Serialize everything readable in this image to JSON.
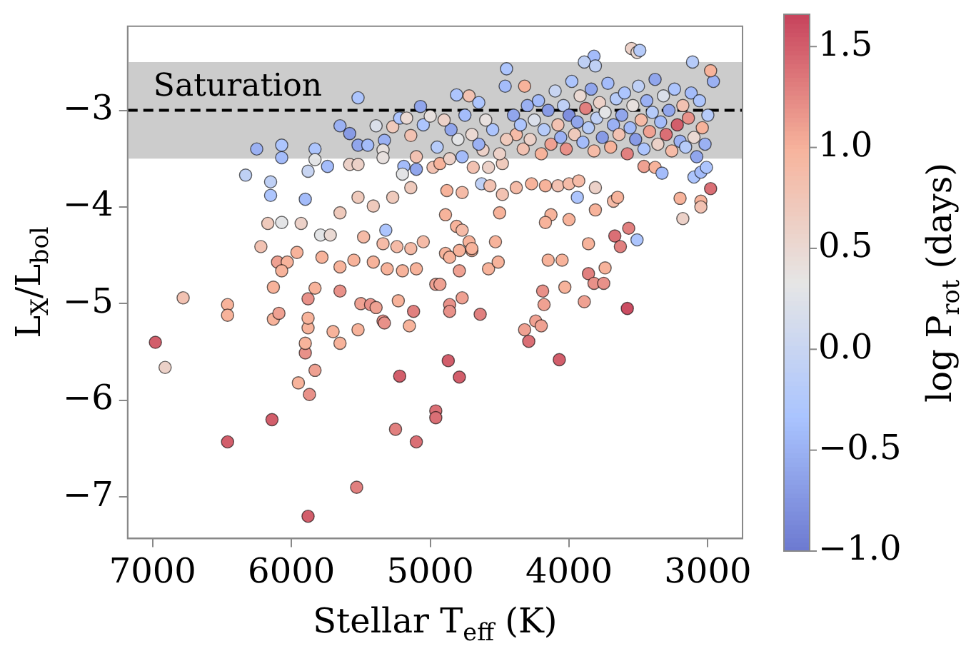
{
  "chart_data": {
    "type": "scatter",
    "xlabel": "Stellar T$_{eff}$ (K)",
    "ylabel": "L$_{X}$/L$_{bol}$",
    "clabel": "log P$_{rot}$ (days)",
    "xlim": [
      7180,
      2750
    ],
    "ylim": [
      -7.43,
      -2.13
    ],
    "xticks": [
      7000,
      6000,
      5000,
      4000,
      3000
    ],
    "yticks": [
      -7,
      -6,
      -5,
      -4,
      -3
    ],
    "clim": [
      -1.0,
      1.66
    ],
    "cticks": [
      {
        "value": -1,
        "label": "−1.0"
      },
      {
        "value": -0.5,
        "label": "−0.5"
      },
      {
        "value": 0,
        "label": "0.0"
      },
      {
        "value": 0.5,
        "label": "0.5"
      },
      {
        "value": 1,
        "label": "1.0"
      },
      {
        "value": 1.5,
        "label": "1.5"
      }
    ],
    "grid": false,
    "legend": false,
    "marker": "circle",
    "bands": [
      {
        "axis": "y",
        "from": -3.5,
        "to": -2.5,
        "label": "Saturation",
        "color": "#cccccc"
      }
    ],
    "ref_lines": [
      {
        "axis": "y",
        "value": -3,
        "color": "#000000",
        "line_style": "dashed"
      }
    ],
    "series": [
      {
        "x": [
          6980,
          6910,
          6780,
          6460,
          6460,
          6460,
          6330,
          6250,
          6070,
          6150,
          6150,
          6170,
          6220,
          6070,
          6130,
          6130,
          6090,
          6140,
          6100,
          5880,
          5870,
          5950,
          5900,
          5900,
          5830,
          5880,
          5880,
          5880,
          6070,
          5830,
          5880,
          5830,
          5740,
          5900,
          5930,
          5790,
          5720,
          5960,
          5780,
          6030,
          6070,
          5830,
          5650,
          5700,
          5650,
          5520,
          5530,
          5250,
          5220,
          5100,
          4960,
          4960,
          5500,
          5430,
          5390,
          5340,
          5330,
          5120,
          5150,
          5230,
          5650,
          5550,
          5410,
          5310,
          5200,
          5100,
          5480,
          5340,
          5240,
          5140,
          5050,
          5650,
          5520,
          5410,
          5270,
          5140,
          5320,
          5190,
          5100,
          5580,
          5520,
          5200,
          5650,
          5580,
          5520,
          5450,
          5390,
          5330,
          5270,
          5220,
          5170,
          5140,
          5050,
          5000,
          5070,
          5520,
          5340,
          5340,
          5100,
          4980,
          4930,
          4860,
          4770,
          4690,
          4580,
          4480,
          4620,
          4880,
          4770,
          4630,
          4570,
          4480,
          4500,
          4380,
          4270,
          4170,
          4080,
          4000,
          3930,
          3940,
          3810,
          3680,
          3650,
          3570,
          3510,
          3670,
          3630,
          4890,
          4810,
          4770,
          4720,
          4700,
          4530,
          4580,
          4510,
          4890,
          4860,
          4790,
          4700,
          4790,
          4960,
          4930,
          4860,
          4770,
          4640,
          4860,
          4870,
          4790,
          4320,
          4290,
          4240,
          4200,
          4190,
          4180,
          4150,
          4050,
          4000,
          4130,
          4170,
          4070,
          4030,
          3890,
          3860,
          3860,
          3820,
          3750,
          3740,
          3810,
          3580,
          3200,
          3050,
          3050,
          2980,
          3180,
          3100,
          3050,
          3010,
          3460,
          3380,
          3330,
          3550,
          3510,
          3490,
          3820,
          3890,
          3810,
          3110,
          2960,
          2980,
          4450,
          4320,
          4460,
          4810,
          4720,
          4650,
          4400,
          4380,
          4350,
          4330,
          4300,
          4280,
          4250,
          4220,
          4200,
          4180,
          4150,
          4130,
          4100,
          4080,
          4060,
          4040,
          4020,
          4000,
          3980,
          3960,
          3940,
          3920,
          3900,
          3880,
          3860,
          3840,
          3820,
          3800,
          3780,
          3760,
          3740,
          3720,
          3700,
          3680,
          3660,
          3640,
          3620,
          3600,
          3580,
          3560,
          3540,
          3520,
          3500,
          3480,
          3460,
          3440,
          3420,
          3400,
          3380,
          3360,
          3340,
          3320,
          3300,
          3280,
          3260,
          3240,
          3220,
          3200,
          3180,
          3160,
          3140,
          3120,
          3100,
          3080,
          3060,
          3040,
          3020,
          3000,
          4450,
          4500,
          4550,
          4600,
          4650,
          4700,
          4750,
          4800,
          4850,
          4900,
          4950
        ],
        "values": [
          -5.4,
          -5.66,
          -4.94,
          -5.01,
          -5.12,
          -6.43,
          -3.67,
          -3.4,
          -3.49,
          -3.74,
          -3.88,
          -4.17,
          -4.41,
          -4.16,
          -5.16,
          -4.83,
          -5.1,
          -6.2,
          -4.57,
          -7.2,
          -5.94,
          -5.82,
          -5.51,
          -5.41,
          -5.69,
          -5.25,
          -5.15,
          -4.95,
          -3.36,
          -3.4,
          -3.63,
          -3.51,
          -3.58,
          -3.92,
          -4.17,
          -4.29,
          -4.29,
          -4.47,
          -4.52,
          -4.57,
          -4.66,
          -4.84,
          -4.87,
          -5.29,
          -5.41,
          -5.27,
          -6.9,
          -6.3,
          -5.75,
          -6.43,
          -6.11,
          -6.18,
          -5.0,
          -5.01,
          -5.04,
          -5.18,
          -5.2,
          -5.08,
          -5.23,
          -4.97,
          -4.62,
          -4.55,
          -4.57,
          -4.64,
          -4.66,
          -4.64,
          -4.31,
          -4.38,
          -4.41,
          -4.43,
          -4.36,
          -4.06,
          -3.9,
          -3.99,
          -3.9,
          -3.8,
          -4.24,
          -3.58,
          -3.61,
          -3.56,
          -3.56,
          -3.66,
          -3.16,
          -3.24,
          -3.36,
          -3.36,
          -3.16,
          -3.31,
          -3.17,
          -3.08,
          -3.08,
          -3.26,
          -3.15,
          -3.06,
          -2.96,
          -2.87,
          -3.41,
          -3.49,
          -3.48,
          -3.59,
          -3.55,
          -3.5,
          -3.48,
          -3.59,
          -3.59,
          -3.55,
          -3.41,
          -3.83,
          -3.85,
          -3.76,
          -3.78,
          -3.87,
          -4.06,
          -3.8,
          -3.76,
          -3.78,
          -3.78,
          -3.76,
          -3.73,
          -3.9,
          -3.8,
          -3.94,
          -3.9,
          -4.22,
          -4.34,
          -4.3,
          -4.41,
          -4.08,
          -4.2,
          -4.24,
          -4.36,
          -4.45,
          -4.36,
          -4.64,
          -4.57,
          -4.48,
          -4.52,
          -4.45,
          -4.43,
          -4.66,
          -4.8,
          -4.8,
          -5.01,
          -4.94,
          -5.11,
          -5.08,
          -5.59,
          -5.76,
          -5.27,
          -5.39,
          -5.18,
          -5.23,
          -4.87,
          -5.01,
          -4.55,
          -4.55,
          -4.13,
          -4.08,
          -4.16,
          -5.58,
          -4.83,
          -4.98,
          -4.38,
          -4.69,
          -4.79,
          -4.79,
          -4.63,
          -4.03,
          -5.05,
          -3.91,
          -3.94,
          -4.0,
          -3.81,
          -4.12,
          -3.69,
          -3.64,
          -3.59,
          -3.58,
          -3.59,
          -3.65,
          -2.36,
          -2.4,
          -2.38,
          -2.44,
          -2.5,
          -2.54,
          -2.5,
          -2.7,
          -2.59,
          -2.57,
          -2.75,
          -2.75,
          -2.84,
          -2.85,
          -2.92,
          -3.05,
          -3.25,
          -3.15,
          -3.4,
          -2.95,
          -3.3,
          -3.1,
          -2.9,
          -3.45,
          -3.2,
          -3.0,
          -3.35,
          -2.8,
          -3.15,
          -3.28,
          -2.95,
          -3.4,
          -3.05,
          -2.7,
          -3.25,
          -3.12,
          -2.85,
          -3.33,
          -2.98,
          -3.18,
          -2.78,
          -3.42,
          -3.08,
          -2.92,
          -3.28,
          -3.02,
          -2.72,
          -3.38,
          -3.15,
          -2.88,
          -3.25,
          -3.05,
          -2.82,
          -3.45,
          -3.18,
          -2.95,
          -3.3,
          -2.75,
          -3.1,
          -3.4,
          -2.9,
          -3.22,
          -3.02,
          -2.68,
          -3.35,
          -3.12,
          -2.85,
          -3.25,
          -3.0,
          -3.42,
          -2.78,
          -3.15,
          -3.32,
          -2.95,
          -3.38,
          -3.08,
          -2.82,
          -3.28,
          -3.48,
          -2.9,
          -3.18,
          -3.35,
          -3.05,
          -3.3,
          -3.45,
          -3.2,
          -3.1,
          -3.35,
          -3.25,
          -3.05,
          -3.3,
          -3.2,
          -3.1,
          -3.38
        ],
        "cvalues": [
          1.5,
          0.6,
          0.8,
          1.0,
          1.0,
          1.5,
          -0.1,
          -0.5,
          -0.4,
          -0.1,
          -0.3,
          0.7,
          0.8,
          0.3,
          1.0,
          1.0,
          1.1,
          1.5,
          1.1,
          1.5,
          1.2,
          1.0,
          1.2,
          1.0,
          1.1,
          1.0,
          1.0,
          1.2,
          -0.3,
          -0.3,
          0.0,
          0.3,
          -0.4,
          -0.4,
          0.6,
          0.3,
          0.5,
          1.0,
          1.0,
          1.0,
          1.0,
          1.0,
          1.2,
          1.0,
          1.0,
          1.0,
          1.3,
          1.3,
          1.5,
          1.4,
          1.4,
          1.4,
          1.1,
          1.2,
          1.1,
          1.2,
          1.2,
          1.3,
          1.0,
          1.0,
          1.0,
          1.0,
          1.0,
          1.0,
          1.0,
          1.0,
          0.9,
          0.9,
          0.9,
          0.9,
          0.9,
          0.7,
          0.7,
          0.7,
          0.7,
          0.7,
          -0.3,
          -0.4,
          -0.6,
          0.6,
          0.6,
          0.3,
          -0.5,
          -0.7,
          -0.6,
          -0.4,
          0.2,
          -0.5,
          0.7,
          -0.3,
          0.5,
          0.8,
          -0.3,
          0.4,
          -0.6,
          -0.3,
          0.4,
          0.4,
          0.8,
          0.8,
          1.0,
          0.6,
          -0.4,
          0.8,
          0.6,
          0.7,
          0.6,
          1.0,
          0.9,
          -0.1,
          0.8,
          0.8,
          1.0,
          0.9,
          1.0,
          1.0,
          0.8,
          0.9,
          0.9,
          -0.3,
          0.6,
          0.9,
          1.0,
          1.3,
          -0.3,
          1.4,
          1.3,
          1.0,
          1.0,
          0.9,
          1.0,
          1.0,
          1.0,
          1.0,
          1.0,
          1.0,
          1.0,
          1.0,
          1.0,
          1.1,
          1.1,
          1.1,
          1.2,
          1.1,
          1.3,
          1.2,
          1.5,
          1.5,
          1.1,
          1.4,
          1.1,
          1.1,
          1.2,
          1.1,
          1.0,
          1.0,
          1.0,
          1.0,
          1.0,
          1.5,
          1.0,
          1.1,
          1.0,
          1.3,
          1.2,
          1.2,
          1.0,
          1.0,
          1.6,
          1.0,
          1.0,
          0.8,
          1.4,
          0.6,
          -0.3,
          -0.4,
          -0.3,
          1.1,
          1.0,
          -0.4,
          0.6,
          0.5,
          -0.2,
          -0.4,
          -0.1,
          -0.1,
          -0.2,
          -0.5,
          1.0,
          -0.3,
          1.0,
          -0.4,
          -0.3,
          0.8,
          -0.3,
          -0.6,
          0.9,
          -0.3,
          0.8,
          -0.5,
          0.6,
          0.2,
          -0.4,
          1.0,
          -0.2,
          -0.7,
          1.1,
          0.0,
          0.8,
          -0.5,
          -0.1,
          1.2,
          -0.8,
          -0.3,
          0.7,
          -0.6,
          0.5,
          -0.4,
          1.3,
          -0.2,
          -0.6,
          0.9,
          -0.1,
          0.6,
          -0.7,
          0.3,
          -0.4,
          1.0,
          -0.5,
          -0.2,
          0.8,
          -0.6,
          -0.3,
          1.3,
          -0.4,
          0.4,
          -0.7,
          -0.1,
          0.9,
          -0.3,
          -0.5,
          1.1,
          -0.2,
          -0.6,
          0.6,
          -0.4,
          0.2,
          1.4,
          -0.6,
          0.9,
          -0.3,
          1.5,
          -0.5,
          0.8,
          -0.2,
          1.2,
          -0.4,
          0.5,
          -0.6,
          -0.3,
          1.0,
          -0.5,
          -0.2,
          0.7,
          0.6,
          -0.3,
          0.4,
          -0.5,
          0.5,
          -0.4,
          0.3,
          -0.6,
          0.6,
          -0.2
        ]
      }
    ]
  }
}
